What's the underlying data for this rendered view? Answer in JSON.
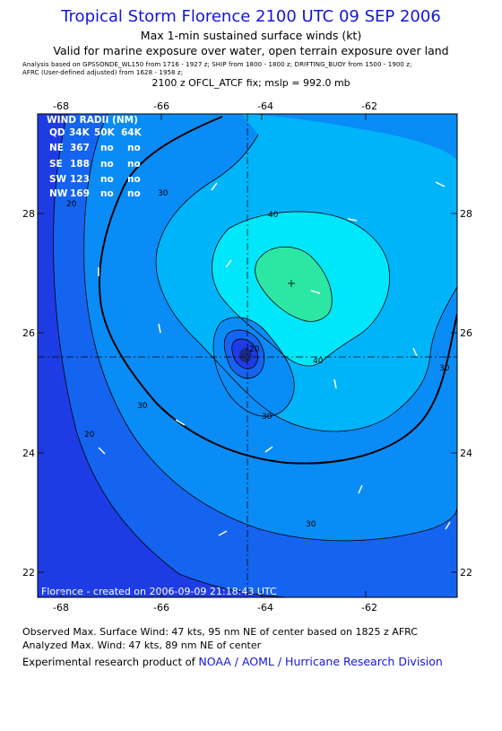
{
  "header": {
    "title": "Tropical Storm Florence 2100 UTC 09 SEP 2006",
    "subtitle": "Max 1-min sustained surface winds (kt)",
    "validity": "Valid for marine exposure over water, open terrain exposure over land",
    "analysis_line1": "Analysis based on  GPSSONDE_WL150 from 1716 - 1927 z;  SHIP from 1800 - 1800 z;  DRIFTING_BUOY from 1500 - 1900 z;",
    "analysis_line2": "AFRC (User-defined adjusted) from 1628 - 1958 z;",
    "fix_line": "2100 z OFCL_ATCF fix; mslp = 992.0 mb"
  },
  "map": {
    "lon_ticks": [
      "-68",
      "-66",
      "-64",
      "-62"
    ],
    "lat_ticks": [
      "28",
      "26",
      "24",
      "22"
    ],
    "wind_radii": {
      "title": "WIND RADII (NM)",
      "header": [
        "QD",
        "34K",
        "50K",
        "64K"
      ],
      "rows": [
        [
          "NE",
          "367",
          "no",
          "no"
        ],
        [
          "SE",
          "188",
          "no",
          "no"
        ],
        [
          "SW",
          "123",
          "no",
          "no"
        ],
        [
          "NW",
          "169",
          "no",
          "no"
        ]
      ]
    },
    "contour_labels": {
      "c20_west": "20",
      "c20_south": "20",
      "c30_nw": "30",
      "c30_mid": "30",
      "c30_center": "30",
      "c30_south": "30",
      "c30_east": "30",
      "c40_north": "40",
      "c40_east": "40",
      "c20_core": "20"
    },
    "credit": "Florence - created on 2006-09-09 21:18:43 UTC",
    "colors": {
      "lt10": "#1e3ce6",
      "10_20": "#1464f0",
      "20_30": "#0a8cf6",
      "30_40": "#00b4fa",
      "40_50": "#00e6fa",
      "50_60": "#2ce6a4",
      "frame_bg": "#1e3ce6"
    }
  },
  "footer": {
    "observed": "Observed Max. Surface Wind: 47 kts, 95 nm NE of center based on 1825 z AFRC",
    "analyzed": "Analyzed Max. Wind: 47 kts, 89 nm NE of center",
    "credit_prefix": "Experimental research product of",
    "credit_link": "NOAA / AOML / Hurricane Research Division"
  }
}
